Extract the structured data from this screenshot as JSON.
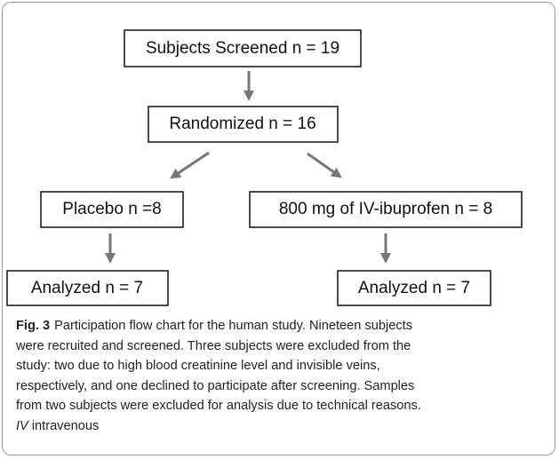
{
  "nodes": [
    {
      "label": "Subjects Screened n = 19"
    },
    {
      "label": "Randomized n = 16"
    },
    {
      "label": "Placebo n =8"
    },
    {
      "label": "800 mg of IV-ibuprofen n = 8"
    },
    {
      "label": "Analyzed n = 7"
    },
    {
      "label": "Analyzed n = 7"
    }
  ],
  "caption": {
    "label": "Fig. 3",
    "lines": [
      "Participation flow chart for the human study. Nineteen subjects",
      "were recruited and screened. Three subjects were excluded from the",
      "study: two due to high blood creatinine level and invisible veins,",
      "respectively, and one declined to participate after screening. Samples",
      "from two subjects were excluded for analysis due to technical reasons."
    ],
    "abbreviation": "IV",
    "definition": "intravenous"
  }
}
